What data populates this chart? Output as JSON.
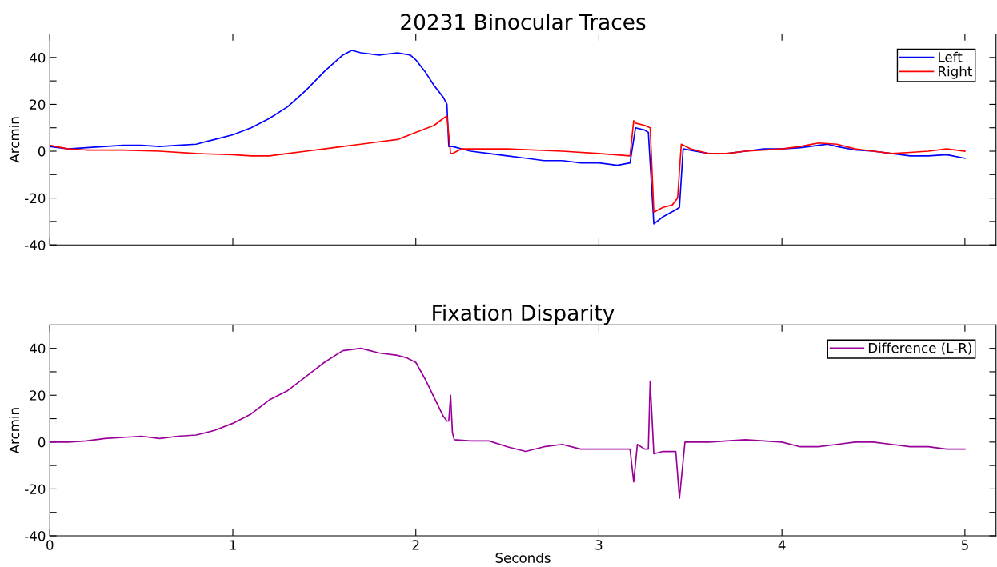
{
  "chart_data": [
    {
      "type": "line",
      "title": "20231 Binocular Traces",
      "ylabel": "Arcmin",
      "xlim": [
        0,
        5.17
      ],
      "xticks": [
        0,
        1,
        2,
        3,
        4,
        5
      ],
      "ylim": [
        -40,
        50
      ],
      "yticks": [
        -40,
        {
          "value": -30,
          "label": null
        },
        -20,
        {
          "value": -10,
          "label": null
        },
        0,
        {
          "value": 10,
          "label": null
        },
        20,
        {
          "value": 30,
          "label": null
        },
        40
      ],
      "tick_labels": "y",
      "legend": "top right",
      "grid": false,
      "series": [
        {
          "name": "Left",
          "color": "#0000ff",
          "x": [
            0,
            0.1,
            0.2,
            0.3,
            0.4,
            0.5,
            0.6,
            0.7,
            0.8,
            0.9,
            1.0,
            1.1,
            1.2,
            1.3,
            1.4,
            1.5,
            1.6,
            1.65,
            1.7,
            1.8,
            1.9,
            1.97,
            2.0,
            2.05,
            2.1,
            2.15,
            2.17,
            2.18,
            2.2,
            2.3,
            2.4,
            2.5,
            2.6,
            2.7,
            2.8,
            2.9,
            3.0,
            3.1,
            3.17,
            3.2,
            3.25,
            3.27,
            3.3,
            3.35,
            3.42,
            3.44,
            3.46,
            3.6,
            3.7,
            3.8,
            3.9,
            4.0,
            4.1,
            4.2,
            4.25,
            4.3,
            4.4,
            4.5,
            4.6,
            4.7,
            4.8,
            4.9,
            5.0
          ],
          "values": [
            2,
            1,
            1.5,
            2,
            2.5,
            2.5,
            2,
            2.5,
            3,
            5,
            7,
            10,
            14,
            19,
            26,
            34,
            41,
            43,
            42,
            41,
            42,
            41,
            39,
            34,
            28,
            23,
            20,
            2,
            2,
            0,
            -1,
            -2,
            -3,
            -4,
            -4,
            -5,
            -5,
            -6,
            -5,
            10,
            9,
            8,
            -31,
            -28,
            -25,
            -24,
            1,
            -1,
            -1,
            0,
            1,
            1,
            1.5,
            2.5,
            3,
            2,
            0.5,
            0,
            -1,
            -2,
            -2,
            -1.5,
            -3
          ]
        },
        {
          "name": "Right",
          "color": "#ff0000",
          "x": [
            0,
            0.1,
            0.2,
            0.4,
            0.6,
            0.8,
            1.0,
            1.1,
            1.2,
            1.3,
            1.4,
            1.5,
            1.6,
            1.7,
            1.8,
            1.9,
            2.0,
            2.1,
            2.15,
            2.17,
            2.19,
            2.2,
            2.25,
            2.5,
            2.8,
            3.0,
            3.17,
            3.19,
            3.2,
            3.25,
            3.28,
            3.3,
            3.35,
            3.4,
            3.43,
            3.45,
            3.5,
            3.6,
            3.7,
            3.8,
            4.0,
            4.1,
            4.2,
            4.3,
            4.4,
            4.5,
            4.6,
            4.7,
            4.8,
            4.9,
            5.0
          ],
          "values": [
            2.5,
            1,
            0.5,
            0.5,
            0,
            -1,
            -1.5,
            -2,
            -2,
            -1,
            0,
            1,
            2,
            3,
            4,
            5,
            8,
            11,
            14,
            15,
            -1,
            -1,
            1,
            1,
            0,
            -1,
            -2,
            13,
            12,
            11,
            10,
            -26,
            -24,
            -23,
            -20,
            3,
            1,
            -1,
            -1,
            0,
            1,
            2,
            3.5,
            3,
            1,
            0,
            -1,
            -0.5,
            0,
            1,
            0
          ]
        }
      ]
    },
    {
      "type": "line",
      "title": "Fixation Disparity",
      "xlabel": "Seconds",
      "ylabel": "Arcmin",
      "xlim": [
        0,
        5.17
      ],
      "xticks": [
        0,
        1,
        2,
        3,
        4,
        5
      ],
      "ylim": [
        -40,
        50
      ],
      "yticks": [
        -40,
        {
          "value": -30,
          "label": null
        },
        -20,
        {
          "value": -10,
          "label": null
        },
        0,
        {
          "value": 10,
          "label": null
        },
        20,
        {
          "value": 30,
          "label": null
        },
        40
      ],
      "legend": "top right",
      "grid": false,
      "series": [
        {
          "name": "Difference (L-R)",
          "color": "#990099",
          "x": [
            0,
            0.1,
            0.2,
            0.3,
            0.4,
            0.5,
            0.6,
            0.7,
            0.8,
            0.9,
            1.0,
            1.1,
            1.2,
            1.3,
            1.4,
            1.5,
            1.6,
            1.7,
            1.8,
            1.9,
            1.95,
            2.0,
            2.05,
            2.1,
            2.15,
            2.17,
            2.18,
            2.19,
            2.2,
            2.21,
            2.3,
            2.4,
            2.5,
            2.6,
            2.7,
            2.8,
            2.9,
            3.0,
            3.1,
            3.17,
            3.19,
            3.21,
            3.25,
            3.27,
            3.28,
            3.3,
            3.35,
            3.42,
            3.44,
            3.47,
            3.6,
            3.8,
            4.0,
            4.1,
            4.2,
            4.3,
            4.4,
            4.5,
            4.6,
            4.7,
            4.8,
            4.9,
            5.0
          ],
          "values": [
            0,
            0,
            0.5,
            1.5,
            2,
            2.5,
            1.5,
            2.5,
            3,
            5,
            8,
            12,
            18,
            22,
            28,
            34,
            39,
            40,
            38,
            37,
            36,
            34,
            27,
            19,
            11,
            9,
            9,
            20,
            4,
            1,
            0.5,
            0.5,
            -2,
            -4,
            -2,
            -1,
            -3,
            -3,
            -3,
            -3,
            -17,
            -1,
            -3,
            -3,
            26,
            -5,
            -4,
            -4,
            -24,
            0,
            0,
            1,
            0,
            -2,
            -2,
            -1,
            0,
            0,
            -1,
            -2,
            -2,
            -3,
            -3
          ]
        }
      ]
    }
  ]
}
